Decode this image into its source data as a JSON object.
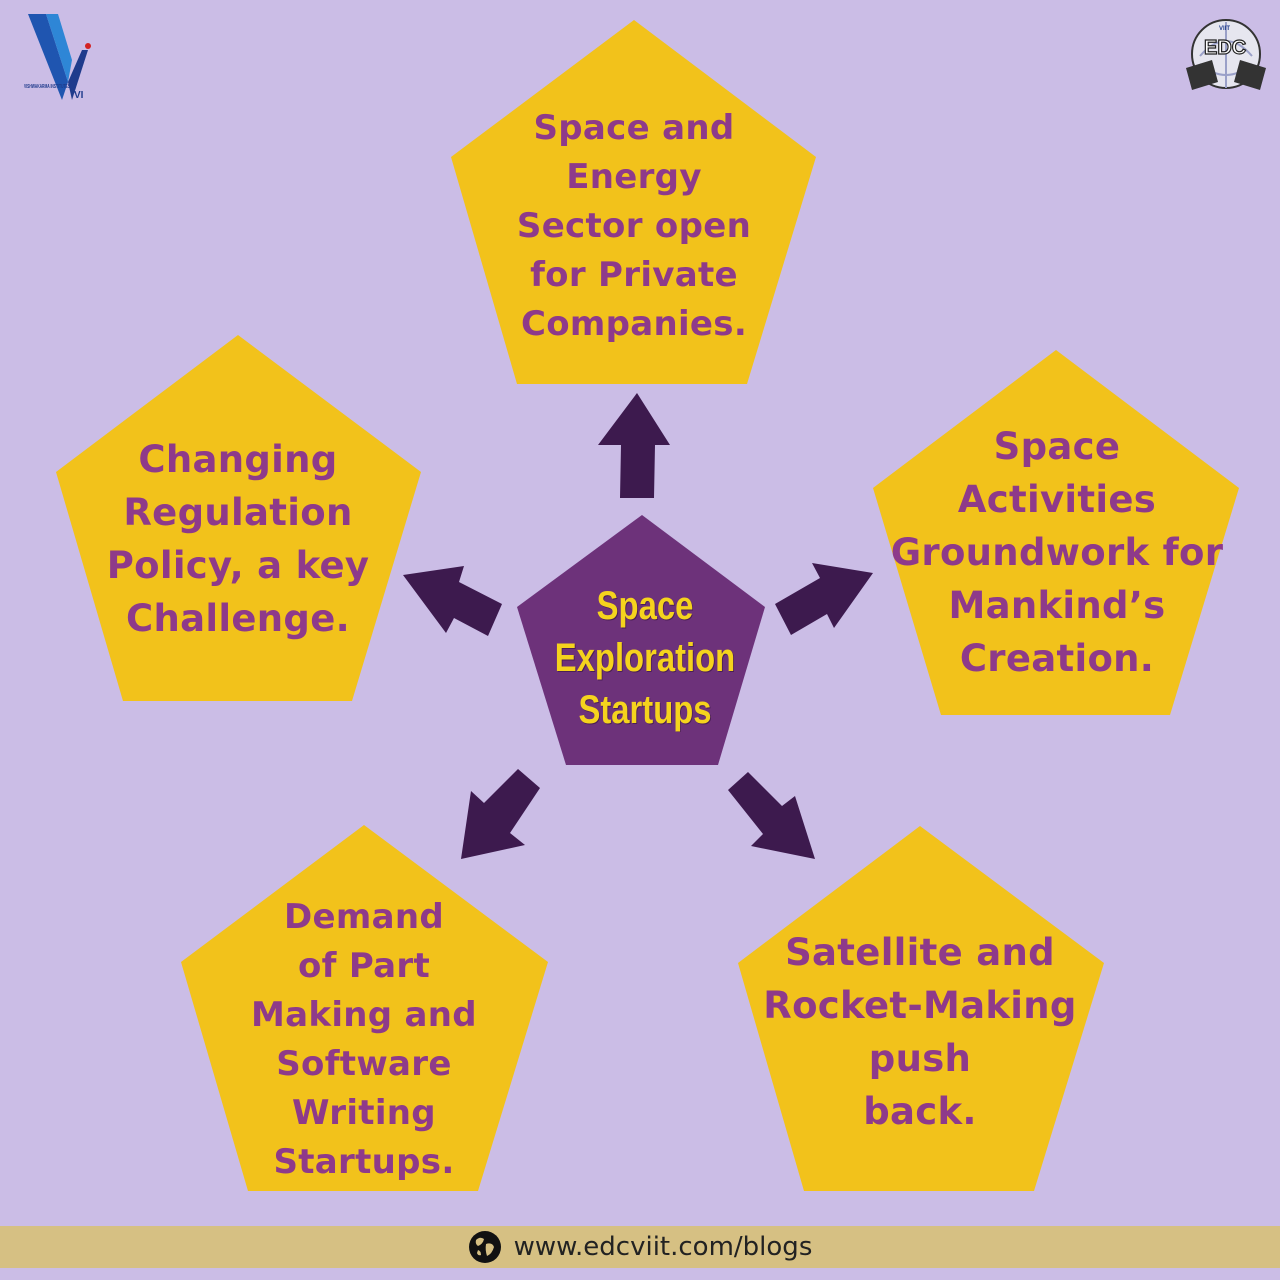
{
  "center": {
    "label": "Space\nExploration\nStartups",
    "fill": "#6d327a"
  },
  "nodes": [
    {
      "id": "top",
      "label": "Space and\nEnergy\nSector open\nfor Private\nCompanies."
    },
    {
      "id": "right",
      "label": "Space\nActivities\nGroundwork for\nMankind’s\nCreation."
    },
    {
      "id": "bottom-right",
      "label": "Satellite and\nRocket-Making\npush\nback."
    },
    {
      "id": "bottom-left",
      "label": "Demand\nof Part\nMaking and\nSoftware\nWriting\nStartups."
    },
    {
      "id": "left",
      "label": "Changing\nRegulation\nPolicy, a key\nChallenge."
    }
  ],
  "colors": {
    "background": "#cbbde6",
    "pentagon": "#f2c21b",
    "node_text": "#8e3a8a",
    "center_text": "#f5d31d",
    "arrow": "#3d1a4e",
    "footer": "#d6c083"
  },
  "logo_left": {
    "text": "VISHWAKARMA INSTITUTES",
    "mark": "VI"
  },
  "logo_right": {
    "small": "VIIT",
    "text": "EDC"
  },
  "footer": {
    "url": "www.edcviit.com/blogs",
    "icon": "globe-icon"
  }
}
